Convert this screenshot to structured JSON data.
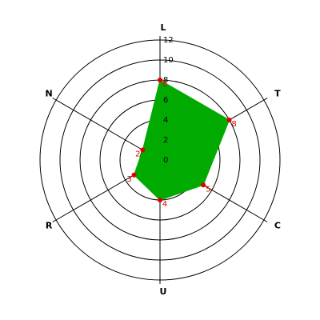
{
  "chart_data": {
    "type": "radar",
    "categories": [
      "L",
      "T",
      "C",
      "U",
      "R",
      "N"
    ],
    "values": [
      8,
      8,
      5,
      4,
      3,
      2
    ],
    "color": "#00aa00",
    "marker_color": "#dd0000",
    "ylim": [
      0,
      12
    ],
    "yticks": [
      0,
      2,
      4,
      6,
      8,
      10,
      12
    ]
  }
}
